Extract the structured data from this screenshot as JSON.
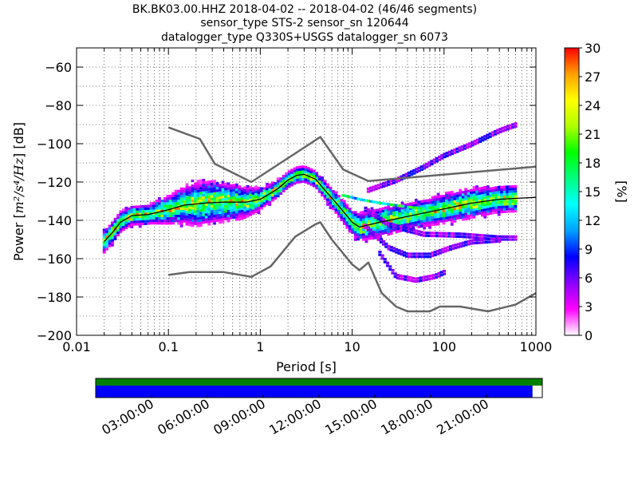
{
  "chart_data": {
    "type": "heatmap",
    "title_lines": [
      "BK.BK03.00.HHZ   2018-04-02 -- 2018-04-02  (46/46 segments)",
      "sensor_type STS-2 sensor_sn 120644",
      "datalogger_type Q330S+USGS datalogger_sn 6073"
    ],
    "xlabel": "Period [s]",
    "ylabel_prefix": "Power [",
    "ylabel_math": "m²/s⁴/Hz",
    "ylabel_suffix": "] [dB]",
    "x_scale": "log",
    "xlim": [
      0.01,
      1000
    ],
    "ylim": [
      -200,
      -50
    ],
    "x_ticks": [
      {
        "value": 0.01,
        "label": "0.01"
      },
      {
        "value": 0.1,
        "label": "0.1"
      },
      {
        "value": 1,
        "label": "1"
      },
      {
        "value": 10,
        "label": "10"
      },
      {
        "value": 100,
        "label": "100"
      },
      {
        "value": 1000,
        "label": "1000"
      }
    ],
    "y_ticks": [
      {
        "value": -200,
        "label": "−200"
      },
      {
        "value": -180,
        "label": "−180"
      },
      {
        "value": -160,
        "label": "−160"
      },
      {
        "value": -140,
        "label": "−140"
      },
      {
        "value": -120,
        "label": "−120"
      },
      {
        "value": -100,
        "label": "−100"
      },
      {
        "value": -80,
        "label": "−80"
      },
      {
        "value": -60,
        "label": "−60"
      }
    ],
    "grid": true,
    "colorbar": {
      "label": "[%]",
      "range": [
        0,
        30
      ],
      "ticks": [
        {
          "value": 0,
          "label": "0"
        },
        {
          "value": 3,
          "label": "3"
        },
        {
          "value": 6,
          "label": "6"
        },
        {
          "value": 9,
          "label": "9"
        },
        {
          "value": 12,
          "label": "12"
        },
        {
          "value": 15,
          "label": "15"
        },
        {
          "value": 18,
          "label": "18"
        },
        {
          "value": 21,
          "label": "21"
        },
        {
          "value": 24,
          "label": "24"
        },
        {
          "value": 27,
          "label": "27"
        },
        {
          "value": 30,
          "label": "30"
        }
      ],
      "colors": [
        "#ffffff",
        "#ff00ff",
        "#8a00ff",
        "#0000ff",
        "#00a0ff",
        "#00ffff",
        "#00ff80",
        "#00ff00",
        "#b0ff00",
        "#ffff00",
        "#ffa000",
        "#ff0000"
      ]
    },
    "noise_models": [
      {
        "name": "high",
        "color": "#666666",
        "points": [
          [
            0.1,
            -91.5
          ],
          [
            0.22,
            -97.5
          ],
          [
            0.32,
            -110.5
          ],
          [
            0.8,
            -120
          ],
          [
            4.5,
            -96.5
          ],
          [
            8,
            -113.5
          ],
          [
            15,
            -119.5
          ],
          [
            1000,
            -112
          ]
        ]
      },
      {
        "name": "low",
        "color": "#666666",
        "points": [
          [
            0.1,
            -168.5
          ],
          [
            0.17,
            -167
          ],
          [
            0.4,
            -167
          ],
          [
            0.8,
            -169.5
          ],
          [
            1.3,
            -164
          ],
          [
            2.4,
            -148.5
          ],
          [
            4,
            -142
          ],
          [
            4.5,
            -141
          ],
          [
            6,
            -150
          ],
          [
            10,
            -163
          ],
          [
            12,
            -166
          ],
          [
            15,
            -162
          ],
          [
            21,
            -178
          ],
          [
            30,
            -185
          ],
          [
            40,
            -187.5
          ],
          [
            70,
            -187.5
          ],
          [
            90,
            -185
          ],
          [
            150,
            -185
          ],
          [
            300,
            -187.5
          ],
          [
            600,
            -184
          ],
          [
            1000,
            -178
          ]
        ]
      }
    ],
    "mean_curve": {
      "color": "#000000",
      "points": [
        [
          0.02,
          -151
        ],
        [
          0.025,
          -146
        ],
        [
          0.03,
          -141
        ],
        [
          0.04,
          -137.5
        ],
        [
          0.06,
          -137
        ],
        [
          0.1,
          -134.5
        ],
        [
          0.15,
          -132
        ],
        [
          0.25,
          -131
        ],
        [
          0.4,
          -130.5
        ],
        [
          0.7,
          -130.5
        ],
        [
          1,
          -129
        ],
        [
          1.5,
          -124
        ],
        [
          2,
          -119
        ],
        [
          2.5,
          -116.5
        ],
        [
          3,
          -116
        ],
        [
          4,
          -118.5
        ],
        [
          5,
          -124
        ],
        [
          7,
          -132
        ],
        [
          10,
          -141
        ],
        [
          12,
          -143.5
        ],
        [
          20,
          -141
        ],
        [
          50,
          -137
        ],
        [
          100,
          -134
        ],
        [
          200,
          -131
        ],
        [
          400,
          -129
        ],
        [
          1000,
          -128
        ]
      ]
    },
    "density_band": {
      "main_width_db": [
        7,
        6,
        6,
        9,
        13,
        12,
        10,
        6,
        5,
        5,
        6,
        8,
        9,
        8,
        8,
        9,
        9,
        8,
        8
      ]
    },
    "secondary_tracks": [
      {
        "name": "upper-branch",
        "points": [
          [
            15,
            -125
          ],
          [
            30,
            -120
          ],
          [
            60,
            -113
          ],
          [
            100,
            -107
          ],
          [
            200,
            -101
          ],
          [
            400,
            -94
          ],
          [
            600,
            -91
          ]
        ]
      },
      {
        "name": "mid-branch",
        "points": [
          [
            14,
            -135
          ],
          [
            25,
            -143
          ],
          [
            60,
            -148
          ],
          [
            150,
            -148.5
          ],
          [
            400,
            -150
          ],
          [
            600,
            -150
          ]
        ]
      },
      {
        "name": "lower-dip",
        "points": [
          [
            14,
            -144
          ],
          [
            25,
            -155
          ],
          [
            40,
            -159
          ],
          [
            70,
            -159
          ],
          [
            120,
            -155
          ],
          [
            200,
            -152
          ],
          [
            400,
            -151
          ]
        ]
      },
      {
        "name": "deep-dip",
        "points": [
          [
            20,
            -158
          ],
          [
            30,
            -170
          ],
          [
            50,
            -172
          ],
          [
            80,
            -170
          ],
          [
            100,
            -168
          ]
        ]
      },
      {
        "name": "ridge-band",
        "points": [
          [
            8,
            -127
          ],
          [
            12,
            -129
          ],
          [
            20,
            -131
          ],
          [
            40,
            -133
          ],
          [
            60,
            -134
          ]
        ]
      }
    ],
    "timeline": {
      "tick_labels": [
        "03:00:00",
        "06:00:00",
        "09:00:00",
        "12:00:00",
        "15:00:00",
        "18:00:00",
        "21:00:00"
      ],
      "tick_hours": [
        3,
        6,
        9,
        12,
        15,
        18,
        21
      ],
      "span_hours": 24,
      "data_coverage_fraction": 1.0,
      "segment_coverage_fraction": 0.978,
      "data_color": "#008000",
      "segment_color": "#0000ff"
    }
  }
}
